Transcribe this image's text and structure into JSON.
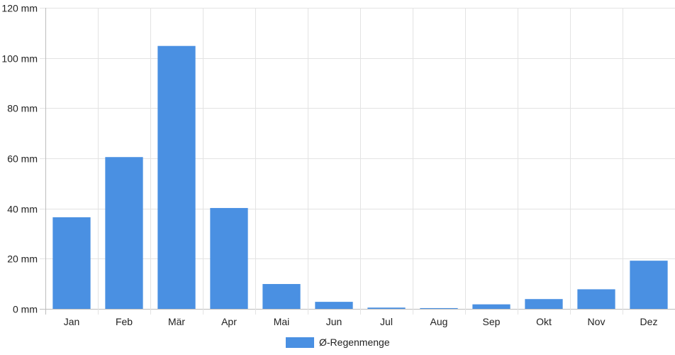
{
  "chart_data": {
    "type": "bar",
    "categories": [
      "Jan",
      "Feb",
      "Mär",
      "Apr",
      "Mai",
      "Jun",
      "Jul",
      "Aug",
      "Sep",
      "Okt",
      "Nov",
      "Dez"
    ],
    "series": [
      {
        "name": "Ø-Regenmenge",
        "values": [
          36.5,
          60.5,
          104.8,
          40.2,
          9.9,
          2.8,
          0.5,
          0.3,
          1.8,
          3.9,
          7.8,
          19.2
        ],
        "color": "#4a90e2"
      }
    ],
    "yticks": [
      "0 mm",
      "20 mm",
      "40 mm",
      "60 mm",
      "80 mm",
      "100 mm",
      "120 mm"
    ],
    "ylim": [
      0,
      120
    ],
    "y_unit": "mm",
    "grid": true,
    "legend_position": "bottom-center"
  }
}
